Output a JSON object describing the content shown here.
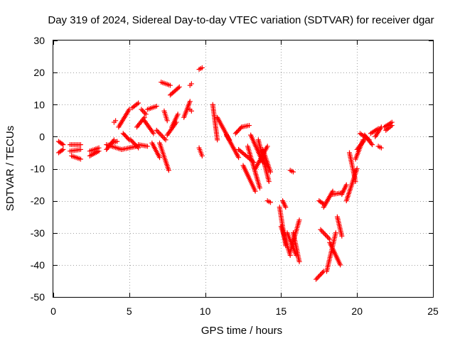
{
  "chart_data": {
    "type": "scatter",
    "title": "Day 319 of 2024, Sidereal Day-to-day VTEC variation (SDTVAR) for receiver dgar",
    "xlabel": "GPS time / hours",
    "ylabel": "SDTVAR / TECUs",
    "xlim": [
      0,
      25
    ],
    "ylim": [
      -50,
      30
    ],
    "xticks": [
      0,
      5,
      10,
      15,
      20,
      25
    ],
    "yticks": [
      -50,
      -40,
      -30,
      -20,
      -10,
      0,
      10,
      20,
      30
    ],
    "grid": true,
    "marker": "plus",
    "color": "#ff0000",
    "segments": [
      {
        "x": [
          0.35,
          0.65
        ],
        "y": [
          -1.5,
          -2.5
        ]
      },
      {
        "x": [
          0.35,
          0.65
        ],
        "y": [
          -5.0,
          -4.0
        ]
      },
      {
        "x": [
          1.1,
          1.8
        ],
        "y": [
          -2.5,
          -2.5
        ]
      },
      {
        "x": [
          1.1,
          1.8
        ],
        "y": [
          -4.5,
          -4.0
        ]
      },
      {
        "x": [
          1.2,
          1.8
        ],
        "y": [
          -6.0,
          -7.0
        ]
      },
      {
        "x": [
          2.4,
          3.0
        ],
        "y": [
          -4.5,
          -3.5
        ]
      },
      {
        "x": [
          2.4,
          3.0
        ],
        "y": [
          -6.0,
          -4.5
        ]
      },
      {
        "x": [
          3.5,
          4.0
        ],
        "y": [
          -4.0,
          -1.0
        ]
      },
      {
        "x": [
          3.5,
          4.5
        ],
        "y": [
          -2.5,
          -4.0
        ]
      },
      {
        "x": [
          3.8,
          4.2
        ],
        "y": [
          -2.0,
          -1.5
        ]
      },
      {
        "x": [
          4.0,
          4.1
        ],
        "y": [
          4.5,
          5.0
        ]
      },
      {
        "x": [
          4.3,
          5.0
        ],
        "y": [
          3.0,
          8.5
        ]
      },
      {
        "x": [
          4.6,
          5.0
        ],
        "y": [
          1.0,
          -1.0
        ]
      },
      {
        "x": [
          4.5,
          5.5
        ],
        "y": [
          -4.0,
          -3.0
        ]
      },
      {
        "x": [
          5.2,
          5.6
        ],
        "y": [
          9.0,
          10.5
        ]
      },
      {
        "x": [
          5.1,
          5.6
        ],
        "y": [
          -1.0,
          -3.5
        ]
      },
      {
        "x": [
          5.5,
          6.0
        ],
        "y": [
          3.0,
          6.0
        ]
      },
      {
        "x": [
          5.6,
          6.2
        ],
        "y": [
          -2.5,
          -3.0
        ]
      },
      {
        "x": [
          5.8,
          6.1
        ],
        "y": [
          8.5,
          7.0
        ]
      },
      {
        "x": [
          6.0,
          6.6
        ],
        "y": [
          5.0,
          1.0
        ]
      },
      {
        "x": [
          6.2,
          6.8
        ],
        "y": [
          8.5,
          9.5
        ]
      },
      {
        "x": [
          6.5,
          7.0
        ],
        "y": [
          -2.0,
          -6.5
        ]
      },
      {
        "x": [
          6.8,
          7.4
        ],
        "y": [
          2.0,
          -1.0
        ]
      },
      {
        "x": [
          7.0,
          7.6
        ],
        "y": [
          -2.0,
          -10.5
        ]
      },
      {
        "x": [
          7.1,
          7.7
        ],
        "y": [
          17.0,
          16.0
        ]
      },
      {
        "x": [
          7.3,
          7.5
        ],
        "y": [
          8.0,
          5.0
        ]
      },
      {
        "x": [
          7.5,
          8.1
        ],
        "y": [
          0.5,
          4.5
        ]
      },
      {
        "x": [
          7.7,
          8.3
        ],
        "y": [
          13.0,
          15.5
        ]
      },
      {
        "x": [
          7.8,
          8.2
        ],
        "y": [
          3.0,
          7.0
        ]
      },
      {
        "x": [
          8.6,
          9.0
        ],
        "y": [
          6.0,
          11.0
        ]
      },
      {
        "x": [
          9.0,
          9.1
        ],
        "y": [
          16.0,
          16.5
        ]
      },
      {
        "x": [
          9.0,
          9.1
        ],
        "y": [
          8.5,
          8.0
        ]
      },
      {
        "x": [
          9.6,
          9.8
        ],
        "y": [
          21.0,
          21.5
        ]
      },
      {
        "x": [
          9.6,
          9.8
        ],
        "y": [
          -3.5,
          -6.0
        ]
      },
      {
        "x": [
          10.5,
          10.8
        ],
        "y": [
          10.0,
          -1.0
        ]
      },
      {
        "x": [
          10.8,
          11.6
        ],
        "y": [
          6.0,
          -1.0
        ]
      },
      {
        "x": [
          11.4,
          12.2
        ],
        "y": [
          0.5,
          -6.5
        ]
      },
      {
        "x": [
          12.0,
          12.4
        ],
        "y": [
          1.0,
          3.0
        ]
      },
      {
        "x": [
          12.4,
          12.9
        ],
        "y": [
          3.0,
          3.5
        ]
      },
      {
        "x": [
          12.2,
          13.2
        ],
        "y": [
          -4.0,
          -8.0
        ]
      },
      {
        "x": [
          12.5,
          13.3
        ],
        "y": [
          -9.0,
          -17.0
        ]
      },
      {
        "x": [
          12.8,
          13.6
        ],
        "y": [
          -3.0,
          -16.0
        ]
      },
      {
        "x": [
          13.0,
          13.8
        ],
        "y": [
          0.5,
          -8.0
        ]
      },
      {
        "x": [
          13.3,
          14.1
        ],
        "y": [
          -10.0,
          -3.0
        ]
      },
      {
        "x": [
          13.5,
          14.2
        ],
        "y": [
          -1.0,
          -14.0
        ]
      },
      {
        "x": [
          13.8,
          14.3
        ],
        "y": [
          -4.0,
          -11.0
        ]
      },
      {
        "x": [
          14.1,
          14.3
        ],
        "y": [
          -20.0,
          -20.5
        ]
      },
      {
        "x": [
          14.9,
          15.3
        ],
        "y": [
          -22.0,
          -34.0
        ]
      },
      {
        "x": [
          15.0,
          15.6
        ],
        "y": [
          -28.0,
          -37.0
        ]
      },
      {
        "x": [
          15.1,
          15.3
        ],
        "y": [
          -20.0,
          -22.0
        ]
      },
      {
        "x": [
          15.4,
          16.0
        ],
        "y": [
          -30.0,
          -37.0
        ]
      },
      {
        "x": [
          15.6,
          16.2
        ],
        "y": [
          -36.0,
          -26.0
        ]
      },
      {
        "x": [
          15.8,
          16.2
        ],
        "y": [
          -30.0,
          -39.0
        ]
      },
      {
        "x": [
          15.6,
          15.8
        ],
        "y": [
          -10.5,
          -11.0
        ]
      },
      {
        "x": [
          17.3,
          17.8
        ],
        "y": [
          -44.5,
          -42.0
        ]
      },
      {
        "x": [
          17.5,
          17.8
        ],
        "y": [
          -20.0,
          -21.0
        ]
      },
      {
        "x": [
          17.6,
          18.2
        ],
        "y": [
          -29.0,
          -32.0
        ]
      },
      {
        "x": [
          17.8,
          18.4
        ],
        "y": [
          -22.0,
          -17.0
        ]
      },
      {
        "x": [
          18.0,
          18.6
        ],
        "y": [
          -42.0,
          -30.0
        ]
      },
      {
        "x": [
          18.2,
          18.9
        ],
        "y": [
          -33.0,
          -40.0
        ]
      },
      {
        "x": [
          18.4,
          19.0
        ],
        "y": [
          -18.0,
          -17.5
        ]
      },
      {
        "x": [
          18.7,
          19.0
        ],
        "y": [
          -25.0,
          -31.0
        ]
      },
      {
        "x": [
          19.0,
          19.3
        ],
        "y": [
          -18.0,
          -15.0
        ]
      },
      {
        "x": [
          19.3,
          20.0
        ],
        "y": [
          -20.0,
          -10.0
        ]
      },
      {
        "x": [
          19.5,
          19.9
        ],
        "y": [
          -5.0,
          -14.0
        ]
      },
      {
        "x": [
          19.9,
          20.4
        ],
        "y": [
          -7.0,
          -1.0
        ]
      },
      {
        "x": [
          20.0,
          20.5
        ],
        "y": [
          -4.0,
          -1.0
        ]
      },
      {
        "x": [
          20.2,
          20.8
        ],
        "y": [
          1.0,
          -1.0
        ]
      },
      {
        "x": [
          20.5,
          21.0
        ],
        "y": [
          0.5,
          -2.5
        ]
      },
      {
        "x": [
          20.9,
          21.4
        ],
        "y": [
          1.0,
          2.5
        ]
      },
      {
        "x": [
          21.2,
          21.6
        ],
        "y": [
          0.0,
          3.0
        ]
      },
      {
        "x": [
          21.4,
          21.6
        ],
        "y": [
          -3.0,
          -3.5
        ]
      },
      {
        "x": [
          21.8,
          22.3
        ],
        "y": [
          3.0,
          4.5
        ]
      },
      {
        "x": [
          21.9,
          22.3
        ],
        "y": [
          2.0,
          3.5
        ]
      }
    ]
  }
}
